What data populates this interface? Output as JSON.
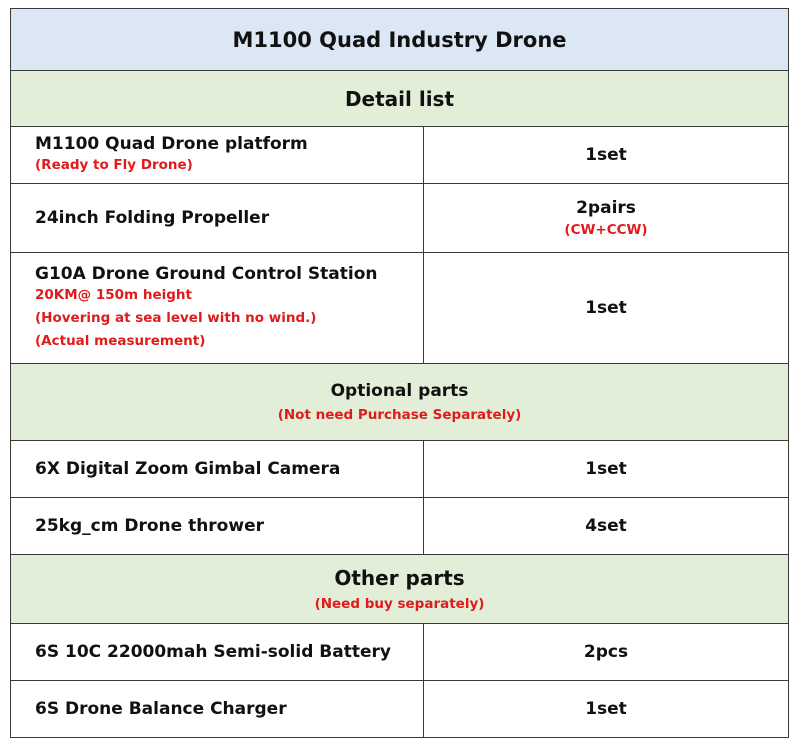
{
  "title": "M1100 Quad Industry Drone",
  "sections": {
    "detail": {
      "title": "Detail list",
      "items": [
        {
          "name": "M1100 Quad Drone platform",
          "notes": [
            "(Ready to Fly Drone)"
          ],
          "qty": "1set",
          "qty_note": ""
        },
        {
          "name": "24inch Folding Propeller",
          "notes": [],
          "qty": "2pairs",
          "qty_note": "(CW+CCW)"
        },
        {
          "name": "G10A Drone Ground Control Station",
          "notes": [
            "20KM@ 150m height",
            "(Hovering at sea level with no wind.)",
            "(Actual measurement)"
          ],
          "qty": "1set",
          "qty_note": ""
        }
      ]
    },
    "optional": {
      "title": "Optional parts",
      "note": "(Not need Purchase Separately)",
      "items": [
        {
          "name": "6X Digital Zoom Gimbal Camera",
          "qty": "1set"
        },
        {
          "name": "25kg_cm Drone thrower",
          "qty": "4set"
        }
      ]
    },
    "other": {
      "title": "Other parts",
      "note": "(Need buy separately)",
      "items": [
        {
          "name": "6S 10C 22000mah Semi-solid Battery",
          "qty": "2pcs"
        },
        {
          "name": "6S Drone Balance Charger",
          "qty": "1set"
        }
      ]
    }
  },
  "colors": {
    "title_bg": "#dbe7f4",
    "section_bg": "#e2eed8",
    "note_red": "#e01b1b",
    "border": "#3a3a3a"
  }
}
